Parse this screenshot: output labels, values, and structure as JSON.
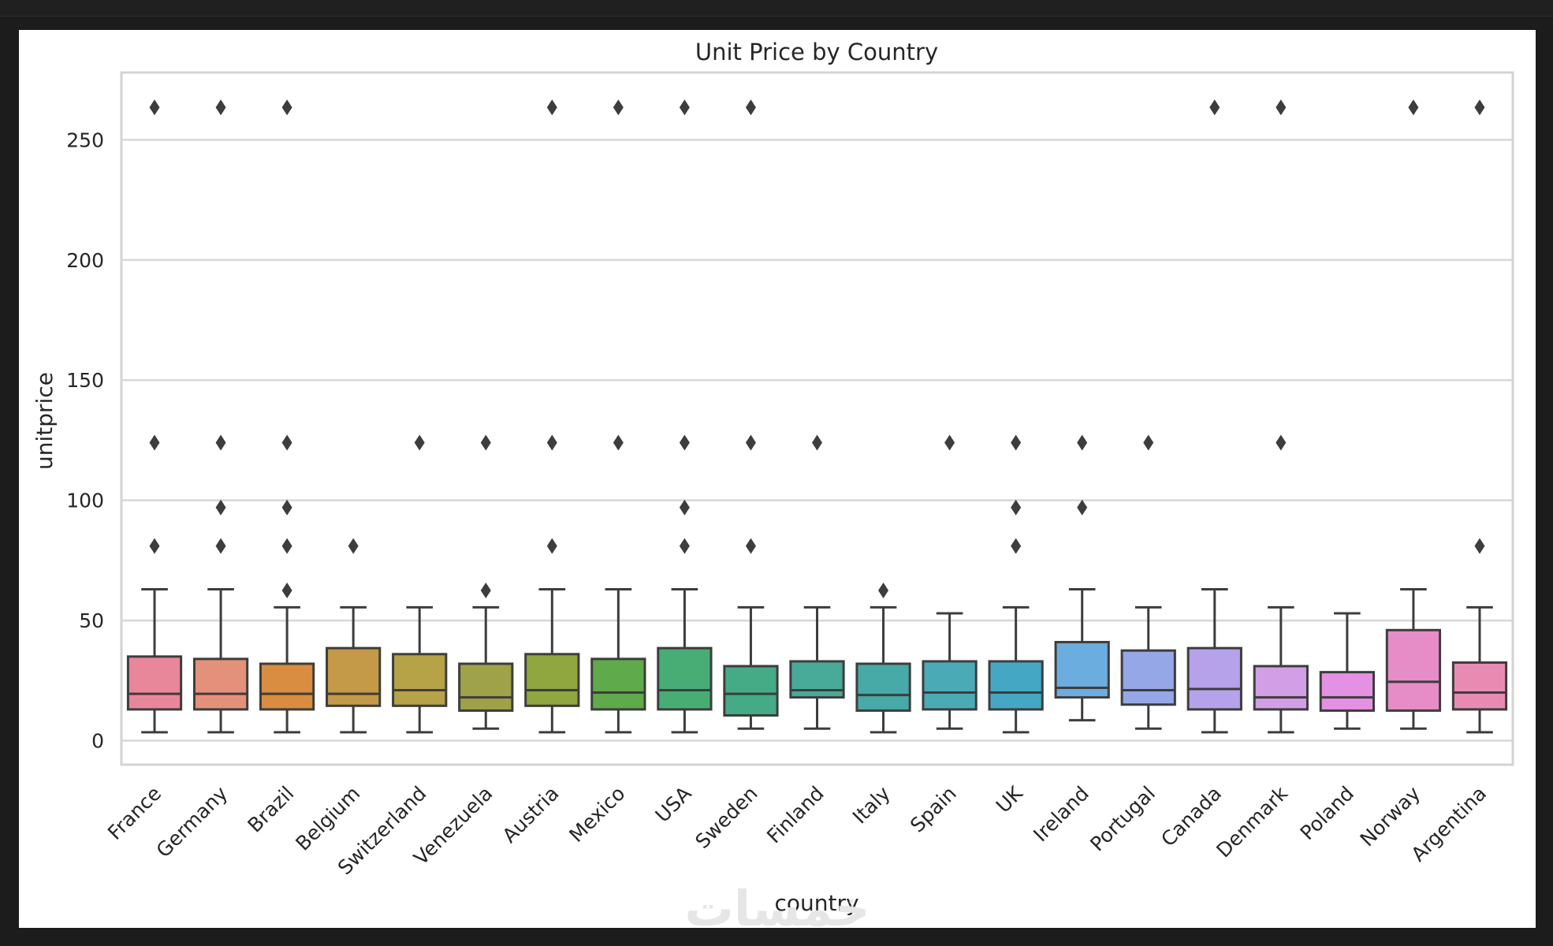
{
  "chart_data": {
    "type": "box",
    "title": "Unit Price by Country",
    "xlabel": "country",
    "ylabel": "unitprice",
    "ylim": [
      -10,
      278
    ],
    "yticks": [
      0,
      50,
      100,
      150,
      200,
      250
    ],
    "grid": true,
    "categories": [
      "France",
      "Germany",
      "Brazil",
      "Belgium",
      "Switzerland",
      "Venezuela",
      "Austria",
      "Mexico",
      "USA",
      "Sweden",
      "Finland",
      "Italy",
      "Spain",
      "UK",
      "Ireland",
      "Portugal",
      "Canada",
      "Denmark",
      "Poland",
      "Norway",
      "Argentina"
    ],
    "series": [
      {
        "category": "France",
        "color": "#e8879a",
        "whisker_low": 3.5,
        "q1": 13,
        "median": 19.5,
        "q3": 35,
        "whisker_high": 63,
        "outliers": [
          81,
          124,
          263.5
        ]
      },
      {
        "category": "Germany",
        "color": "#e4917b",
        "whisker_low": 3.5,
        "q1": 13,
        "median": 19.5,
        "q3": 34,
        "whisker_high": 63,
        "outliers": [
          81,
          97,
          124,
          263.5
        ]
      },
      {
        "category": "Brazil",
        "color": "#d98d40",
        "whisker_low": 3.5,
        "q1": 13,
        "median": 19.5,
        "q3": 32,
        "whisker_high": 55.5,
        "outliers": [
          62.5,
          81,
          97,
          124,
          263.5
        ]
      },
      {
        "category": "Belgium",
        "color": "#c49a48",
        "whisker_low": 3.5,
        "q1": 14.5,
        "median": 19.5,
        "q3": 38.5,
        "whisker_high": 55.5,
        "outliers": [
          81
        ]
      },
      {
        "category": "Switzerland",
        "color": "#b7a347",
        "whisker_low": 3.5,
        "q1": 14.5,
        "median": 21,
        "q3": 36,
        "whisker_high": 55.5,
        "outliers": [
          124
        ]
      },
      {
        "category": "Venezuela",
        "color": "#a0a24a",
        "whisker_low": 5,
        "q1": 12.5,
        "median": 18,
        "q3": 32,
        "whisker_high": 55.5,
        "outliers": [
          62.5,
          124
        ]
      },
      {
        "category": "Austria",
        "color": "#8fa73e",
        "whisker_low": 3.5,
        "q1": 14.5,
        "median": 21,
        "q3": 36,
        "whisker_high": 63,
        "outliers": [
          81,
          124,
          263.5
        ]
      },
      {
        "category": "Mexico",
        "color": "#5faa4a",
        "whisker_low": 3.5,
        "q1": 13,
        "median": 20,
        "q3": 34,
        "whisker_high": 63,
        "outliers": [
          124,
          263.5
        ]
      },
      {
        "category": "USA",
        "color": "#48ad75",
        "whisker_low": 3.5,
        "q1": 13,
        "median": 21,
        "q3": 38.5,
        "whisker_high": 63,
        "outliers": [
          81,
          97,
          124,
          263.5
        ]
      },
      {
        "category": "Sweden",
        "color": "#45aa86",
        "whisker_low": 5,
        "q1": 10.5,
        "median": 19.5,
        "q3": 31,
        "whisker_high": 55.5,
        "outliers": [
          81,
          124,
          263.5
        ]
      },
      {
        "category": "Finland",
        "color": "#48aa98",
        "whisker_low": 5,
        "q1": 18,
        "median": 21,
        "q3": 33,
        "whisker_high": 55.5,
        "outliers": [
          124
        ]
      },
      {
        "category": "Italy",
        "color": "#47aaa7",
        "whisker_low": 3.5,
        "q1": 12.5,
        "median": 19,
        "q3": 32,
        "whisker_high": 55.5,
        "outliers": [
          62.5
        ]
      },
      {
        "category": "Spain",
        "color": "#4aabb7",
        "whisker_low": 5,
        "q1": 13,
        "median": 20,
        "q3": 33,
        "whisker_high": 53,
        "outliers": [
          124
        ]
      },
      {
        "category": "UK",
        "color": "#44a8c4",
        "whisker_low": 3.5,
        "q1": 13,
        "median": 20,
        "q3": 33,
        "whisker_high": 55.5,
        "outliers": [
          81,
          97,
          124
        ]
      },
      {
        "category": "Ireland",
        "color": "#6badde",
        "whisker_low": 8.5,
        "q1": 18,
        "median": 22,
        "q3": 41,
        "whisker_high": 63,
        "outliers": [
          97,
          124
        ]
      },
      {
        "category": "Portugal",
        "color": "#95a7e7",
        "whisker_low": 5,
        "q1": 15,
        "median": 21,
        "q3": 37.5,
        "whisker_high": 55.5,
        "outliers": [
          124
        ]
      },
      {
        "category": "Canada",
        "color": "#b5a2ea",
        "whisker_low": 3.5,
        "q1": 13,
        "median": 21.5,
        "q3": 38.5,
        "whisker_high": 63,
        "outliers": [
          263.5
        ]
      },
      {
        "category": "Denmark",
        "color": "#d29fe7",
        "whisker_low": 3.5,
        "q1": 13,
        "median": 18,
        "q3": 31,
        "whisker_high": 55.5,
        "outliers": [
          124,
          263.5
        ]
      },
      {
        "category": "Poland",
        "color": "#e591e3",
        "whisker_low": 5,
        "q1": 12.5,
        "median": 18,
        "q3": 28.5,
        "whisker_high": 53,
        "outliers": []
      },
      {
        "category": "Norway",
        "color": "#e68dc8",
        "whisker_low": 5,
        "q1": 12.5,
        "median": 24.5,
        "q3": 46,
        "whisker_high": 63,
        "outliers": [
          263.5
        ]
      },
      {
        "category": "Argentina",
        "color": "#e88bb3",
        "whisker_low": 3.5,
        "q1": 13,
        "median": 20,
        "q3": 32.5,
        "whisker_high": 55.5,
        "outliers": [
          81,
          263.5
        ]
      }
    ]
  },
  "watermark": "خمسات"
}
